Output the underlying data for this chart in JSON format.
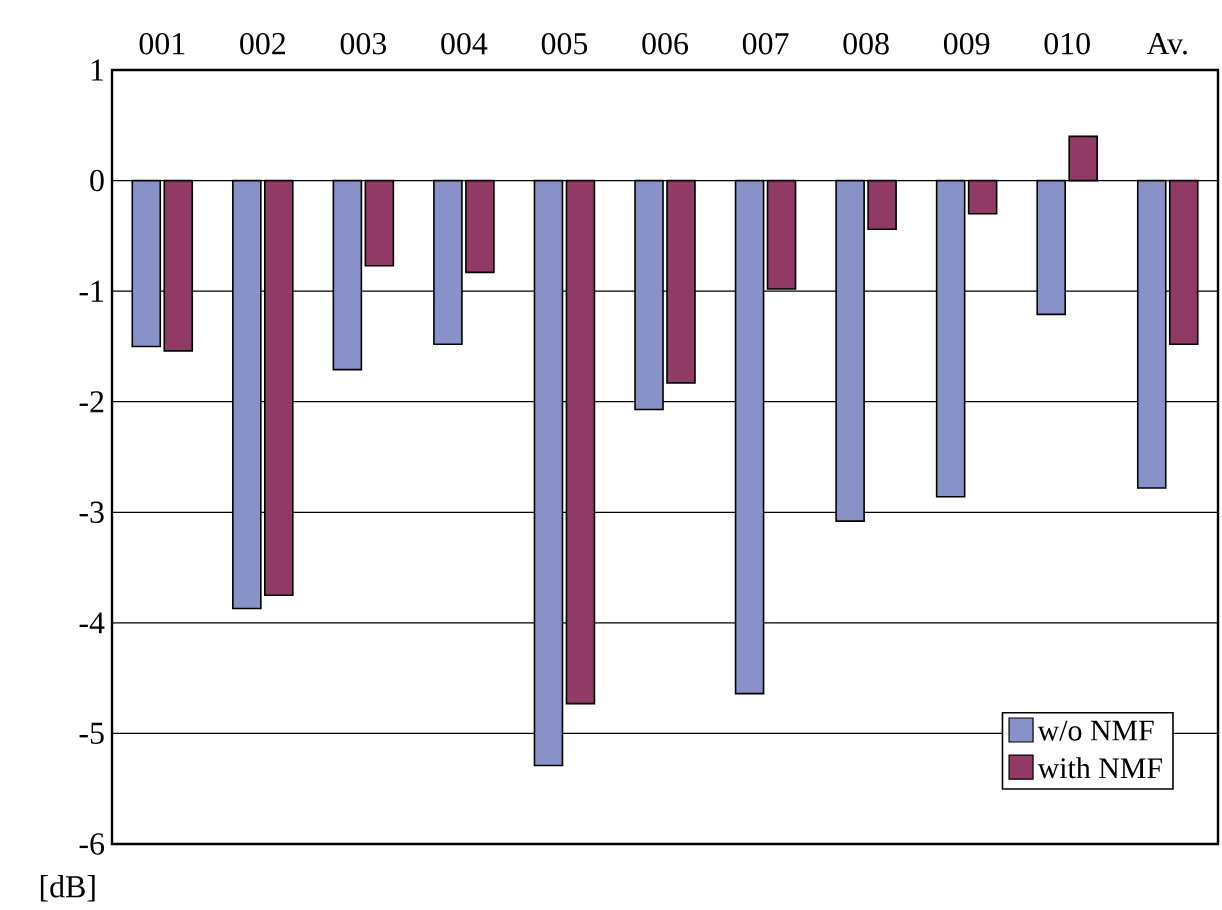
{
  "chart_data": {
    "type": "bar",
    "ylabel": "[dB]",
    "categories": [
      "001",
      "002",
      "003",
      "004",
      "005",
      "006",
      "007",
      "008",
      "009",
      "010",
      "Av."
    ],
    "series": [
      {
        "name": "w/o NMF",
        "color": "#8891c8",
        "values": [
          -1.5,
          -3.87,
          -1.71,
          -1.48,
          -5.29,
          -2.07,
          -4.64,
          -3.08,
          -2.86,
          -1.21,
          -2.78
        ]
      },
      {
        "name": "with NMF",
        "color": "#923a66",
        "values": [
          -1.54,
          -3.75,
          -0.77,
          -0.83,
          -4.73,
          -1.83,
          -0.98,
          -0.44,
          -0.3,
          0.4,
          -1.48
        ]
      }
    ],
    "ylim": [
      -6,
      1
    ],
    "yticks": [
      -6,
      -5,
      -4,
      -3,
      -2,
      -1,
      0,
      1
    ],
    "grid": "y",
    "legend": "bottom right"
  }
}
